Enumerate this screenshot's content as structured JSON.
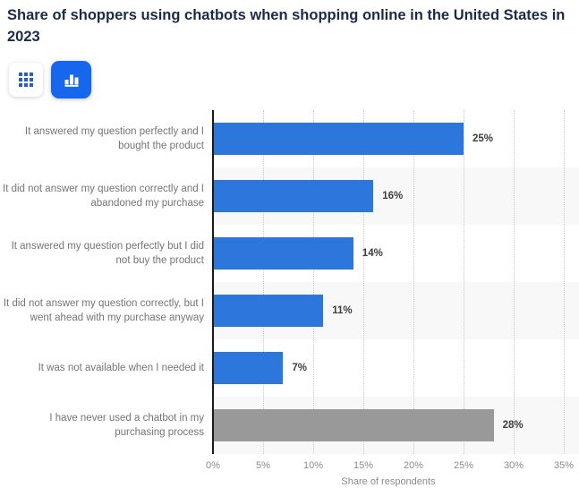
{
  "header": {
    "title": "Share of shoppers using chatbots when shopping online in the United States in 2023"
  },
  "toolbar": {
    "table_button": "table-view",
    "chart_button": "chart-view",
    "active_view": "chart"
  },
  "colors": {
    "title_text": "#1a2b49",
    "bar_blue": "#2d76db",
    "bar_gray": "#999999",
    "button_active_bg": "#1767ee",
    "grid_icon_blue": "#2160d4",
    "row_alt_background": "#f8f8f8",
    "value_label": "#3e3e3e",
    "category_label": "#757575",
    "axis_label": "#8c8c8c"
  },
  "chart_data": {
    "type": "bar",
    "orientation": "horizontal",
    "title": "Share of shoppers using chatbots when shopping online in the United States in 2023",
    "categories": [
      "It answered my question perfectly and I bought the product",
      "It did not answer my question correctly and I abandoned my purchase",
      "It answered my question perfectly but I did not buy the product",
      "It did not answer my question correctly, but I went ahead with my purchase anyway",
      "It was not available when I needed it",
      "I have never used a chatbot in my purchasing process"
    ],
    "values": [
      25,
      16,
      14,
      11,
      7,
      28
    ],
    "value_labels": [
      "25%",
      "16%",
      "14%",
      "11%",
      "7%",
      "28%"
    ],
    "bar_colors": [
      "#2d76db",
      "#2d76db",
      "#2d76db",
      "#2d76db",
      "#2d76db",
      "#999999"
    ],
    "xlabel": "Share of respondents",
    "ylabel": "",
    "xlim": [
      0,
      35
    ],
    "x_ticks": [
      {
        "value": 0,
        "label": "0%"
      },
      {
        "value": 5,
        "label": "5%"
      },
      {
        "value": 10,
        "label": "10%"
      },
      {
        "value": 15,
        "label": "15%"
      },
      {
        "value": 20,
        "label": "20%"
      },
      {
        "value": 25,
        "label": "25%"
      },
      {
        "value": 30,
        "label": "30%"
      },
      {
        "value": 35,
        "label": "35%"
      }
    ],
    "grid": "vertical-dotted",
    "legend": "none"
  }
}
